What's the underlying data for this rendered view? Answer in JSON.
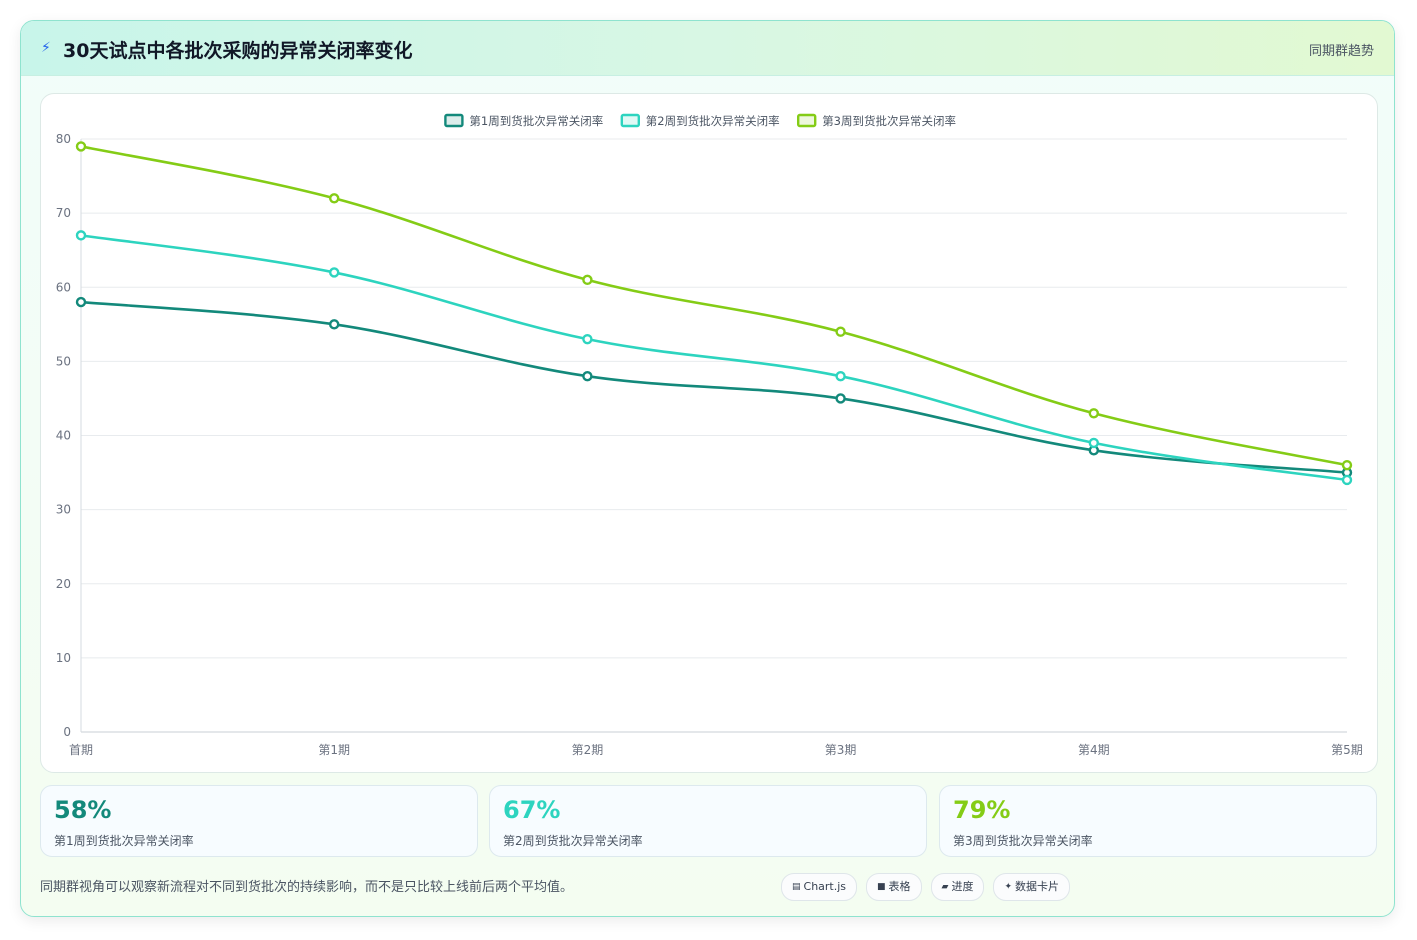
{
  "header": {
    "title": "30天试点中各批次采购的异常关闭率变化",
    "tag": "同期群趋势",
    "icon": "bolt-icon"
  },
  "chart_data": {
    "type": "line",
    "title": "",
    "xlabel": "",
    "ylabel": "",
    "categories": [
      "首期",
      "第1期",
      "第2期",
      "第3期",
      "第4期",
      "第5期"
    ],
    "ylim": [
      0,
      80
    ],
    "yticks": [
      0,
      10,
      20,
      30,
      40,
      50,
      60,
      70,
      80
    ],
    "grid": true,
    "legend_position": "top-center",
    "series": [
      {
        "name": "第1周到货批次异常关闭率",
        "color": "#13897b",
        "values": [
          58,
          55,
          48,
          45,
          38,
          35
        ]
      },
      {
        "name": "第2周到货批次异常关闭率",
        "color": "#2dd4bf",
        "values": [
          67,
          62,
          53,
          48,
          39,
          34
        ]
      },
      {
        "name": "第3周到货批次异常关闭率",
        "color": "#84cc16",
        "values": [
          79,
          72,
          61,
          54,
          43,
          36
        ]
      }
    ]
  },
  "stats": [
    {
      "value": "58%",
      "label": "第1周到货批次异常关闭率",
      "color": "#13897b"
    },
    {
      "value": "67%",
      "label": "第2周到货批次异常关闭率",
      "color": "#2dd4bf"
    },
    {
      "value": "79%",
      "label": "第3周到货批次异常关闭率",
      "color": "#84cc16"
    }
  ],
  "footer": {
    "note": "同期群视角可以观察新流程对不同到货批次的持续影响，而不是只比较上线前后两个平均值。",
    "pills": [
      {
        "icon": "chart-icon",
        "glyph": "▤",
        "label": "Chart.js"
      },
      {
        "icon": "table-icon",
        "glyph": "■",
        "label": "表格"
      },
      {
        "icon": "progress-icon",
        "glyph": "▰",
        "label": "进度"
      },
      {
        "icon": "sparkle-icon",
        "glyph": "✦",
        "label": "数据卡片"
      }
    ]
  }
}
